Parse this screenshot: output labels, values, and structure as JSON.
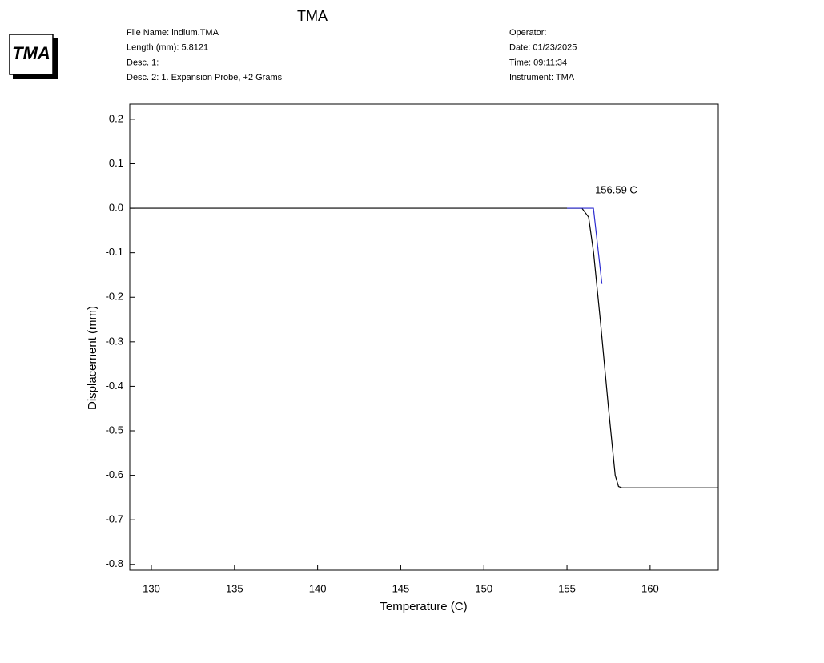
{
  "logo": "TMA",
  "header": {
    "left": [
      "File Name: indium.TMA",
      "Length (mm): 5.8121",
      "Desc. 1:",
      "Desc. 2: 1. Expansion Probe, +2 Grams"
    ],
    "right": [
      "Operator:",
      "Date: 01/23/2025",
      "Time:  09:11:34",
      "Instrument: TMA"
    ]
  },
  "chart_data": {
    "type": "line",
    "title": "TMA",
    "x_label": "Temperature (C)",
    "y_label": "Displacement (mm)",
    "xlim": [
      128.7,
      164.1
    ],
    "ylim": [
      -0.813,
      0.234
    ],
    "xticks": [
      130,
      135,
      140,
      145,
      150,
      155,
      160
    ],
    "yticks": [
      0.2,
      0.1,
      {
        "value": 0,
        "label": "0.0"
      },
      -0.1,
      -0.2,
      -0.3,
      -0.4,
      -0.5,
      -0.6,
      -0.7,
      -0.8
    ],
    "series": [
      {
        "color": "#000000",
        "x": [
          128.7,
          155.9,
          156.3,
          156.6,
          157.0,
          157.5,
          157.9,
          158.1,
          158.3,
          164.1
        ],
        "values": [
          0,
          0,
          -0.02,
          -0.1,
          -0.25,
          -0.45,
          -0.6,
          -0.625,
          -0.628,
          -0.628
        ]
      },
      {
        "color": "#2b2bd0",
        "x": [
          155.0,
          156.59,
          157.1
        ],
        "values": [
          0,
          0,
          -0.17
        ]
      }
    ],
    "annotations": [
      {
        "text": "156.59 C",
        "x": 156.59,
        "y": 0.04
      }
    ]
  }
}
